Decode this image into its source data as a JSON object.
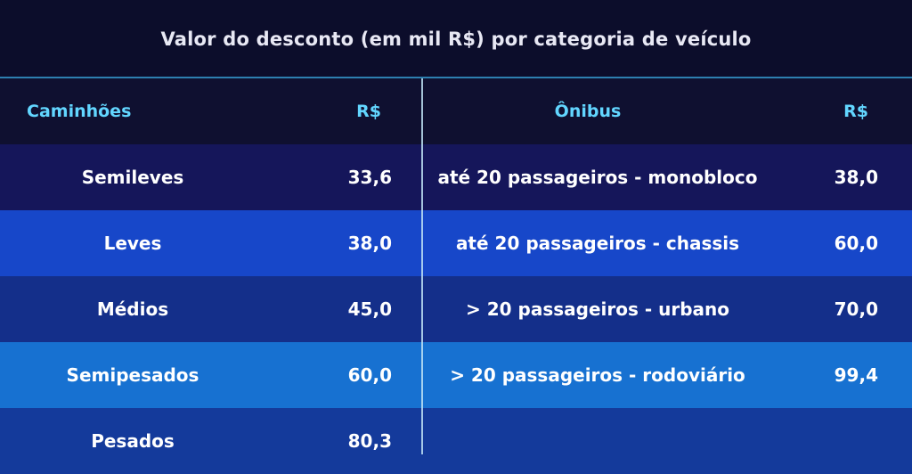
{
  "title": "Valor do desconto (em mil R$) por categoria de veículo",
  "header": {
    "col1": "Caminhões",
    "col2": "R$",
    "col3": "Ônibus",
    "col4": "R$"
  },
  "rows": [
    {
      "truck": "Semileves",
      "truck_value": "33,6",
      "bus": "até 20 passageiros - monobloco",
      "bus_value": "38,0"
    },
    {
      "truck": "Leves",
      "truck_value": "38,0",
      "bus": "até 20 passageiros - chassis",
      "bus_value": "60,0"
    },
    {
      "truck": "Médios",
      "truck_value": "45,0",
      "bus": "> 20 passageiros - urbano",
      "bus_value": "70,0"
    },
    {
      "truck": "Semipesados",
      "truck_value": "60,0",
      "bus": "> 20 passageiros - rodoviário",
      "bus_value": "99,4"
    },
    {
      "truck": "Pesados",
      "truck_value": "80,3",
      "bus": "",
      "bus_value": ""
    }
  ],
  "colors": {
    "header_text": "#62d6ff",
    "background": "#0b0c2a",
    "divider": "#bfe3f6"
  }
}
